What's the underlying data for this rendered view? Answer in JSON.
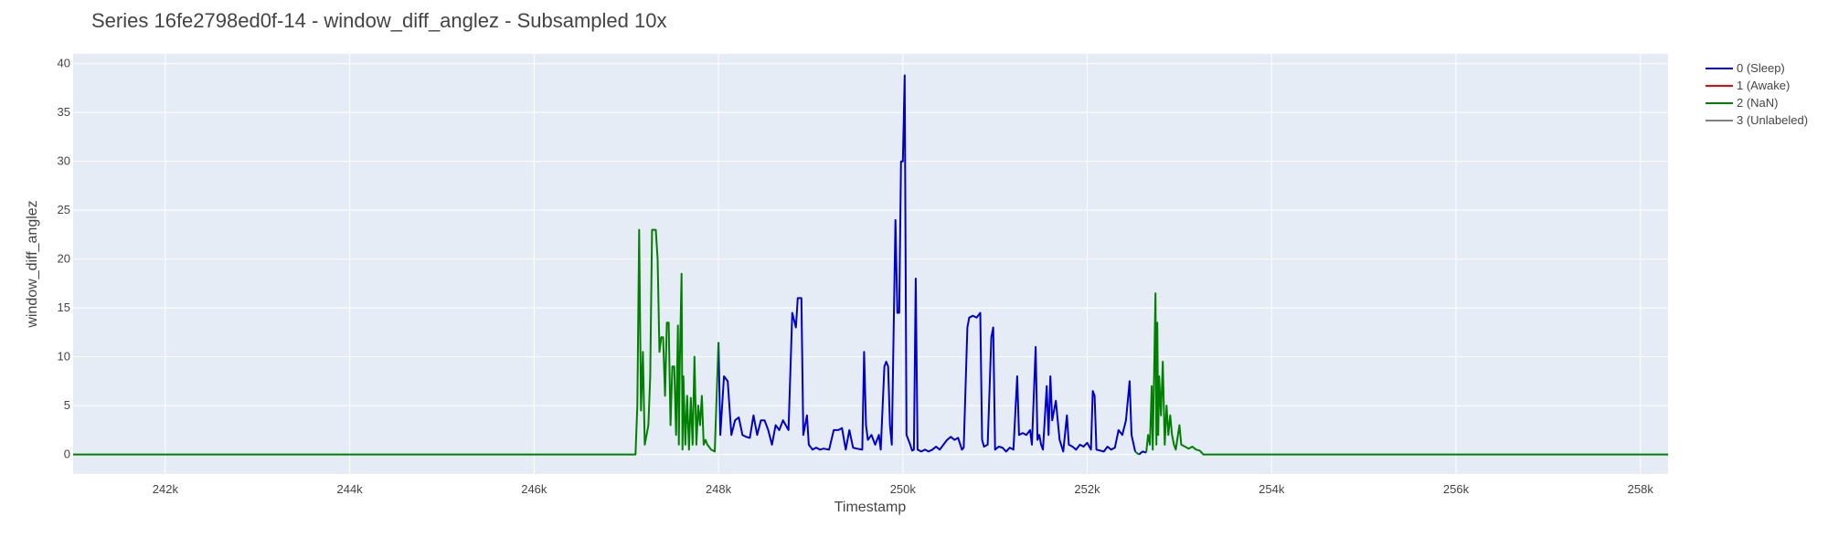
{
  "chart_data": {
    "type": "line",
    "title": "Series 16fe2798ed0f-14 - window_diff_anglez - Subsampled 10x",
    "xlabel": "Timestamp",
    "ylabel": "window_diff_anglez",
    "xlim": [
      241000,
      258300
    ],
    "ylim": [
      -2,
      41
    ],
    "x_ticks": [
      242000,
      244000,
      246000,
      248000,
      250000,
      252000,
      254000,
      256000,
      258000
    ],
    "x_tick_labels": [
      "242k",
      "244k",
      "246k",
      "248k",
      "250k",
      "252k",
      "254k",
      "256k",
      "258k"
    ],
    "y_ticks": [
      0,
      5,
      10,
      15,
      20,
      25,
      30,
      35,
      40
    ],
    "y_tick_labels": [
      "0",
      "5",
      "10",
      "15",
      "20",
      "25",
      "30",
      "35",
      "40"
    ],
    "grid": true,
    "legend_position": "top-right",
    "series": [
      {
        "name": "0 (Sleep)",
        "color": "#0000cc",
        "segments": [
          [
            [
              248000,
              11.5
            ],
            [
              248020,
              2
            ],
            [
              248060,
              8
            ],
            [
              248100,
              7.5
            ],
            [
              248140,
              2
            ],
            [
              248180,
              3.5
            ],
            [
              248220,
              3.8
            ],
            [
              248260,
              2
            ],
            [
              248300,
              1.8
            ],
            [
              248340,
              1.7
            ],
            [
              248380,
              4
            ],
            [
              248420,
              2
            ],
            [
              248460,
              3.5
            ],
            [
              248500,
              3.5
            ],
            [
              248540,
              2.5
            ],
            [
              248580,
              1
            ],
            [
              248620,
              3
            ],
            [
              248660,
              2.5
            ],
            [
              248700,
              3.5
            ],
            [
              248760,
              2.5
            ],
            [
              248800,
              14.5
            ],
            [
              248840,
              13
            ],
            [
              248860,
              16
            ],
            [
              248900,
              16
            ],
            [
              248920,
              2
            ],
            [
              248940,
              3
            ],
            [
              248960,
              4
            ],
            [
              248980,
              1
            ],
            [
              249020,
              0.5
            ],
            [
              249060,
              0.7
            ],
            [
              249100,
              0.5
            ],
            [
              249140,
              0.6
            ],
            [
              249200,
              0.5
            ],
            [
              249250,
              2.5
            ],
            [
              249300,
              2.5
            ],
            [
              249340,
              2.7
            ],
            [
              249380,
              0.5
            ],
            [
              249420,
              2.5
            ],
            [
              249460,
              0.7
            ],
            [
              249500,
              0.6
            ],
            [
              249560,
              0.5
            ],
            [
              249580,
              10.5
            ],
            [
              249600,
              3
            ],
            [
              249620,
              1.5
            ],
            [
              249660,
              2
            ],
            [
              249700,
              1
            ],
            [
              249740,
              2
            ],
            [
              249760,
              0.5
            ],
            [
              249800,
              9
            ],
            [
              249820,
              9.5
            ],
            [
              249840,
              9
            ],
            [
              249860,
              3
            ],
            [
              249880,
              1
            ],
            [
              249920,
              24
            ],
            [
              249940,
              14.5
            ],
            [
              249960,
              14.5
            ],
            [
              249980,
              30
            ],
            [
              250000,
              30
            ],
            [
              250020,
              38.8
            ],
            [
              250040,
              2
            ],
            [
              250080,
              1
            ],
            [
              250100,
              0.4
            ],
            [
              250120,
              0.5
            ],
            [
              250140,
              18
            ],
            [
              250160,
              0.5
            ],
            [
              250200,
              0.3
            ],
            [
              250240,
              0.5
            ],
            [
              250280,
              0.3
            ],
            [
              250320,
              0.5
            ],
            [
              250360,
              0.8
            ],
            [
              250400,
              0.5
            ],
            [
              250440,
              1
            ],
            [
              250480,
              1.5
            ],
            [
              250520,
              1.8
            ],
            [
              250560,
              1.5
            ],
            [
              250600,
              1.7
            ],
            [
              250640,
              0.5
            ],
            [
              250660,
              0.7
            ],
            [
              250700,
              13
            ],
            [
              250720,
              14
            ],
            [
              250760,
              14.2
            ],
            [
              250800,
              14
            ],
            [
              250840,
              14.5
            ],
            [
              250860,
              1.5
            ],
            [
              250880,
              0.8
            ],
            [
              250920,
              1
            ],
            [
              250960,
              12
            ],
            [
              250980,
              13
            ],
            [
              251000,
              0.5
            ],
            [
              251040,
              0.8
            ],
            [
              251080,
              0.7
            ],
            [
              251120,
              0.3
            ],
            [
              251160,
              0.7
            ],
            [
              251200,
              0.5
            ],
            [
              251240,
              8
            ],
            [
              251260,
              2
            ],
            [
              251300,
              2.2
            ],
            [
              251340,
              2
            ],
            [
              251380,
              2.5
            ],
            [
              251400,
              1
            ],
            [
              251440,
              11
            ],
            [
              251460,
              1.5
            ],
            [
              251480,
              2
            ],
            [
              251500,
              1
            ],
            [
              251520,
              0.5
            ],
            [
              251560,
              7
            ],
            [
              251580,
              2
            ],
            [
              251600,
              8
            ],
            [
              251620,
              3.5
            ],
            [
              251660,
              5.5
            ],
            [
              251700,
              1.5
            ],
            [
              251740,
              0.3
            ],
            [
              251780,
              4
            ],
            [
              251800,
              1
            ],
            [
              251840,
              0.8
            ],
            [
              251880,
              0.5
            ],
            [
              251920,
              1
            ],
            [
              251960,
              0.8
            ],
            [
              252000,
              1.2
            ],
            [
              252040,
              0.5
            ],
            [
              252060,
              6.5
            ],
            [
              252080,
              6
            ],
            [
              252100,
              0.5
            ],
            [
              252140,
              0.4
            ],
            [
              252180,
              0.3
            ],
            [
              252220,
              0.8
            ],
            [
              252260,
              0.5
            ],
            [
              252300,
              0.7
            ],
            [
              252340,
              2.5
            ],
            [
              252380,
              2
            ],
            [
              252420,
              3.5
            ],
            [
              252460,
              7.5
            ],
            [
              252480,
              2
            ],
            [
              252520,
              0.3
            ]
          ],
          [
            [
              252560,
              0
            ],
            [
              252600,
              0.3
            ],
            [
              252640,
              0.2
            ]
          ]
        ]
      },
      {
        "name": "1 (Awake)",
        "color": "#ff0000",
        "segments": []
      },
      {
        "name": "2 (NaN)",
        "color": "#008000",
        "segments": [
          [
            [
              241000,
              0
            ],
            [
              247100,
              0
            ],
            [
              247120,
              5
            ],
            [
              247140,
              23
            ],
            [
              247160,
              4.5
            ],
            [
              247180,
              10.5
            ],
            [
              247200,
              1
            ],
            [
              247240,
              3
            ],
            [
              247260,
              8
            ],
            [
              247280,
              23
            ],
            [
              247320,
              23
            ],
            [
              247340,
              20
            ],
            [
              247360,
              10.5
            ],
            [
              247380,
              12
            ],
            [
              247400,
              12
            ],
            [
              247420,
              6
            ],
            [
              247440,
              13.5
            ],
            [
              247460,
              13.5
            ],
            [
              247480,
              3
            ],
            [
              247500,
              9
            ],
            [
              247520,
              9
            ],
            [
              247540,
              2
            ],
            [
              247560,
              13.2
            ],
            [
              247570,
              1
            ],
            [
              247580,
              9
            ],
            [
              247600,
              18.5
            ],
            [
              247610,
              0.5
            ],
            [
              247620,
              8
            ],
            [
              247640,
              1
            ],
            [
              247660,
              6
            ],
            [
              247680,
              0.5
            ],
            [
              247700,
              5.8
            ],
            [
              247720,
              1
            ],
            [
              247740,
              10
            ],
            [
              247760,
              1
            ],
            [
              247780,
              5
            ],
            [
              247800,
              3
            ],
            [
              247820,
              6
            ],
            [
              247840,
              1
            ],
            [
              247860,
              1.5
            ],
            [
              247880,
              1
            ],
            [
              247920,
              0.5
            ],
            [
              247960,
              0.3
            ],
            [
              248000,
              11.5
            ]
          ],
          [
            [
              252520,
              0.3
            ],
            [
              252560,
              0
            ]
          ],
          [
            [
              252640,
              0.2
            ],
            [
              252660,
              2
            ],
            [
              252680,
              1
            ],
            [
              252700,
              7
            ],
            [
              252710,
              0.5
            ],
            [
              252720,
              5.5
            ],
            [
              252740,
              16.5
            ],
            [
              252750,
              1
            ],
            [
              252760,
              13.5
            ],
            [
              252770,
              2
            ],
            [
              252780,
              8
            ],
            [
              252800,
              4
            ],
            [
              252820,
              9.5
            ],
            [
              252840,
              1
            ],
            [
              252860,
              5
            ],
            [
              252880,
              2
            ],
            [
              252900,
              4
            ],
            [
              252920,
              2
            ],
            [
              252940,
              1
            ],
            [
              252960,
              0.5
            ],
            [
              253000,
              3
            ],
            [
              253020,
              1
            ],
            [
              253060,
              0.8
            ],
            [
              253100,
              0.6
            ],
            [
              253140,
              0.8
            ],
            [
              253180,
              0.5
            ],
            [
              253220,
              0.4
            ],
            [
              253260,
              0
            ],
            [
              258300,
              0
            ]
          ]
        ]
      },
      {
        "name": "3 (Unlabeled)",
        "color": "#808080",
        "segments": []
      }
    ]
  }
}
